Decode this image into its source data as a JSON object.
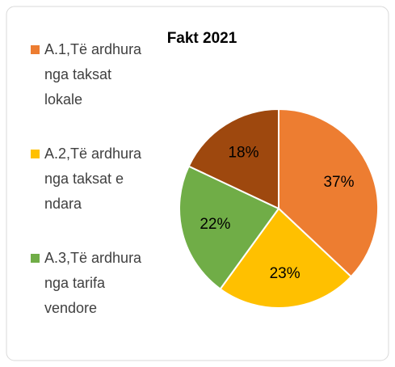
{
  "chart_data": {
    "type": "pie",
    "title": "Fakt 2021",
    "categories": [
      "A.1,Të ardhura nga taksat lokale",
      "A.2,Të ardhura nga taksat e ndara",
      "A.3,Të ardhura nga tarifa vendore",
      null
    ],
    "values": [
      37,
      23,
      22,
      18
    ],
    "value_labels": [
      "37%",
      "23%",
      "22%",
      "18%"
    ],
    "colors": [
      "#ED7D31",
      "#FFC000",
      "#70AD47",
      "#9E480E"
    ],
    "legend": "left"
  }
}
